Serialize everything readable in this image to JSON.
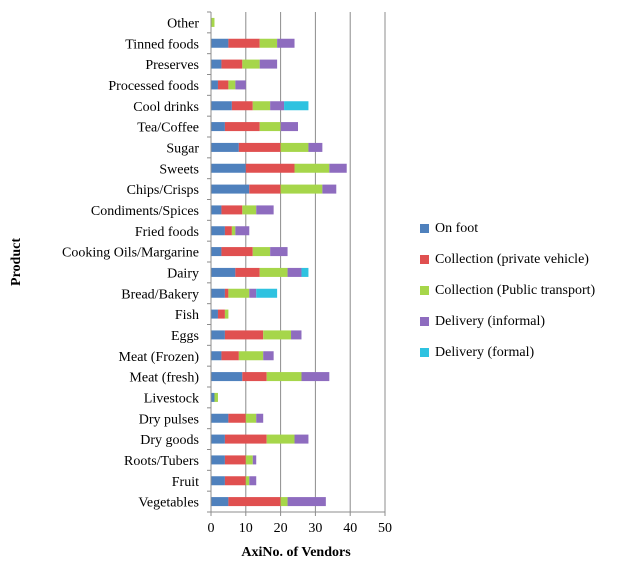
{
  "chart_data": {
    "type": "bar",
    "orientation": "horizontal",
    "stacked": true,
    "title": "",
    "xlabel": "AxiNo. of Vendors",
    "ylabel": "Product",
    "xlim": [
      0,
      50
    ],
    "xticks": [
      0,
      10,
      20,
      30,
      40,
      50
    ],
    "grid": "vertical",
    "legend_position": "right",
    "categories": [
      "Vegetables",
      "Fruit",
      "Roots/Tubers",
      "Dry goods",
      "Dry pulses",
      "Livestock",
      "Meat (fresh)",
      "Meat (Frozen)",
      "Eggs",
      "Fish",
      "Bread/Bakery",
      "Dairy",
      "Cooking Oils/Margarine",
      "Fried foods",
      "Condiments/Spices",
      "Chips/Crisps",
      "Sweets",
      "Sugar",
      "Tea/Coffee",
      "Cool drinks",
      "Processed foods",
      "Preserves",
      "Tinned foods",
      "Other"
    ],
    "series": [
      {
        "name": "On foot",
        "color": "#4F81BD",
        "values": [
          5,
          4,
          4,
          4,
          5,
          1,
          9,
          3,
          4,
          2,
          4,
          7,
          3,
          4,
          3,
          11,
          10,
          8,
          4,
          6,
          2,
          3,
          5,
          0
        ]
      },
      {
        "name": "Collection (private vehicle)",
        "color": "#E05050",
        "values": [
          15,
          6,
          6,
          12,
          5,
          0,
          7,
          5,
          11,
          2,
          1,
          7,
          9,
          2,
          6,
          9,
          14,
          12,
          10,
          6,
          3,
          6,
          9,
          0
        ]
      },
      {
        "name": "Collection (Public transport)",
        "color": "#A6D64A",
        "values": [
          2,
          1,
          2,
          8,
          3,
          1,
          10,
          7,
          8,
          1,
          6,
          8,
          5,
          1,
          4,
          12,
          10,
          8,
          6,
          5,
          2,
          5,
          5,
          1
        ]
      },
      {
        "name": "Delivery (informal)",
        "color": "#8E6CBF",
        "values": [
          11,
          2,
          1,
          4,
          2,
          0,
          8,
          3,
          3,
          0,
          2,
          4,
          5,
          4,
          5,
          4,
          5,
          4,
          5,
          4,
          3,
          5,
          5,
          0
        ]
      },
      {
        "name": "Delivery (formal)",
        "color": "#2EC2E0",
        "values": [
          0,
          0,
          0,
          0,
          0,
          0,
          0,
          0,
          0,
          0,
          6,
          2,
          0,
          0,
          0,
          0,
          0,
          0,
          0,
          7,
          0,
          0,
          0,
          0
        ]
      }
    ]
  }
}
